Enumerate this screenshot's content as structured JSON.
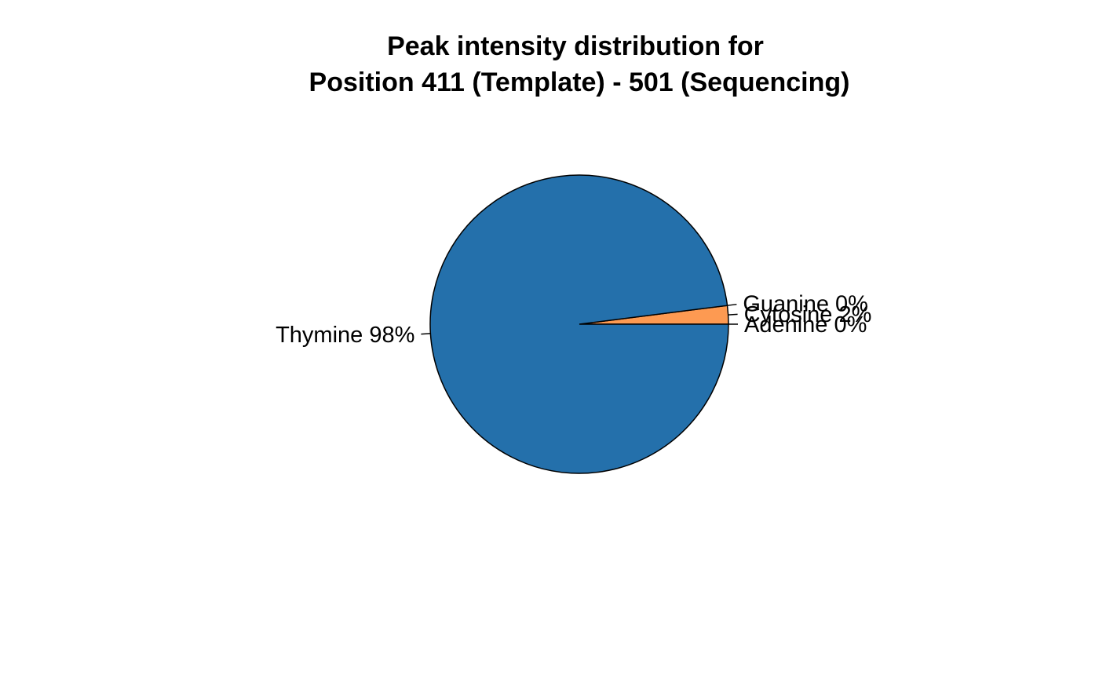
{
  "chart_data": {
    "type": "pie",
    "title_lines": [
      "Peak intensity distribution for",
      "Position 411 (Template) - 501 (Sequencing)"
    ],
    "slices": [
      {
        "name": "Adenine",
        "value": 0,
        "label": "Adenine 0%",
        "color": "#ffffff"
      },
      {
        "name": "Cytosine",
        "value": 2,
        "label": "Cytosine 2%",
        "color": "#fd9a52"
      },
      {
        "name": "Guanine",
        "value": 0,
        "label": "Guanine 0%",
        "color": "#ffffff"
      },
      {
        "name": "Thymine",
        "value": 98,
        "label": "Thymine 98%",
        "color": "#2470ab"
      }
    ],
    "start_angle_degrees": 0,
    "direction": "counterclockwise"
  }
}
